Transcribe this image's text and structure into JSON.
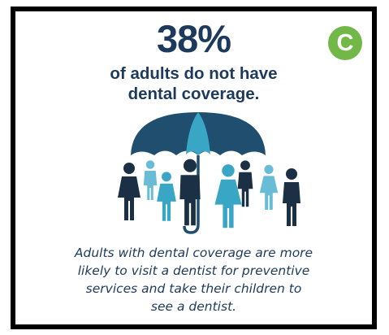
{
  "infographic": {
    "stat": "38%",
    "headline_lines": [
      "of adults do not have",
      "dental coverage."
    ],
    "badge": "C",
    "caption_lines": [
      "Adults with dental coverage are more",
      "likely to visit a dentist for preventive",
      "services and take their children to",
      "see a dentist."
    ]
  },
  "colors": {
    "text_navy": "#1d3a5c",
    "umbrella_navy": "#1f4e6f",
    "figure_navy": "#1b2f45",
    "figure_teal": "#3aa6c6",
    "figure_light": "#69bcd6",
    "badge_green": "#72b848"
  }
}
